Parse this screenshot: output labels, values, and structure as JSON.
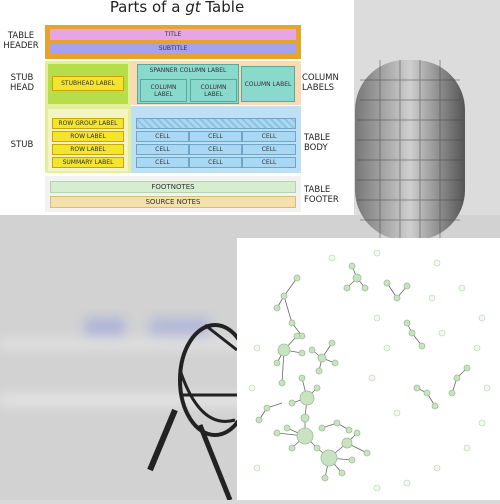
{
  "diagram": {
    "title_prefix": "Parts of a ",
    "title_italic": "gt",
    "title_suffix": " Table",
    "side_left": {
      "table_header": [
        "TABLE",
        "HEADER"
      ],
      "stub_head": [
        "STUB",
        "HEAD"
      ],
      "stub": "STUB"
    },
    "side_right": {
      "column_labels": [
        "COLUMN",
        "LABELS"
      ],
      "table_body": [
        "TABLE",
        "BODY"
      ],
      "table_footer": [
        "TABLE",
        "FOOTER"
      ]
    },
    "header": {
      "title": "TITLE",
      "subtitle": "SUBTITLE"
    },
    "stubhead_label": "STUBHEAD LABEL",
    "spanner_label": "SPANNER COLUMN LABEL",
    "column_label": "COLUMN LABEL",
    "stub_rows": [
      "ROW GROUP LABEL",
      "ROW LABEL",
      "ROW LABEL",
      "SUMMARY LABEL"
    ],
    "cell": "CELL",
    "footnotes": "FOOTNOTES",
    "source_notes": "SOURCE NOTES"
  },
  "colors": {
    "header_frame": "#e3a52b",
    "title": "#e6a6e3",
    "subtitle": "#a4a2f0",
    "stub_frame": "#e3ef9a",
    "stubhead": "#f1e52d",
    "column_labels": "#8ad9cd",
    "column_frame": "#fbd9b5",
    "body_frame": "#bde0f5",
    "cell": "#a9d8f5",
    "footnotes": "#d6edd0",
    "source_notes": "#f4e0ad",
    "network_node": "#c9e3c2",
    "network_edge": "#666666"
  }
}
